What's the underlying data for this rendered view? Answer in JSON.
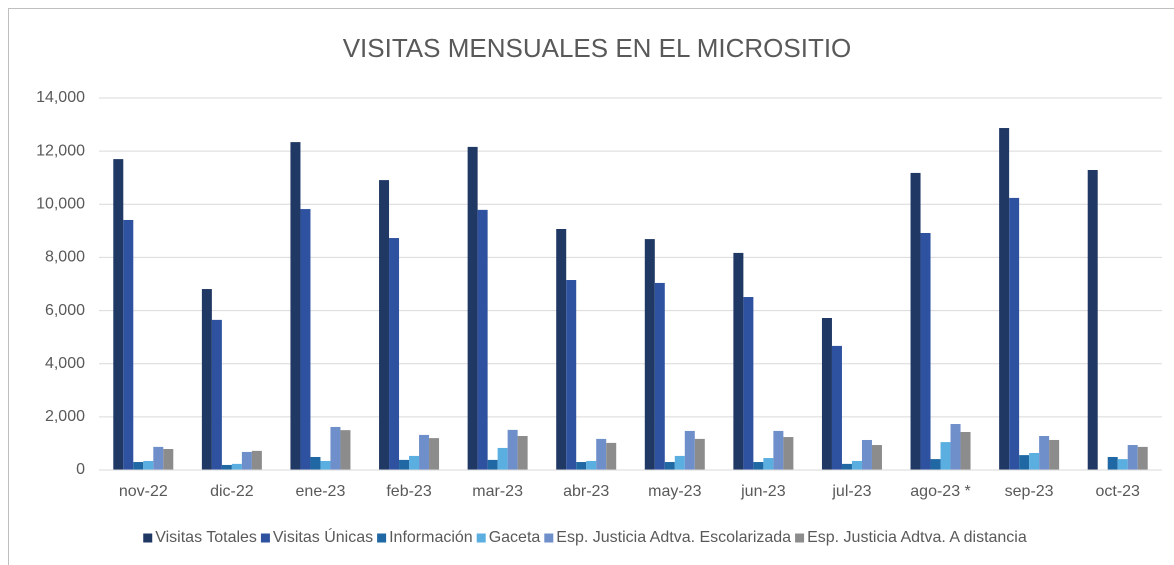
{
  "chart_data": {
    "type": "bar",
    "title": "VISITAS MENSUALES EN EL MICROSITIO",
    "categories": [
      "nov-22",
      "dic-22",
      "ene-23",
      "feb-23",
      "mar-23",
      "abr-23",
      "may-23",
      "jun-23",
      "jul-23",
      "ago-23 *",
      "sep-23",
      "oct-23"
    ],
    "series": [
      {
        "name": "Visitas Totales",
        "color": "#203864",
        "values": [
          11700,
          6810,
          12340,
          10910,
          12160,
          9070,
          8690,
          8170,
          5720,
          11180,
          12870,
          11290
        ]
      },
      {
        "name": "Visitas Únicas",
        "color": "#2f52a0",
        "values": [
          9410,
          5650,
          9820,
          8730,
          9790,
          7150,
          7040,
          6510,
          4670,
          8920,
          10240,
          null
        ]
      },
      {
        "name": "Información",
        "color": "#1f68a3",
        "values": [
          300,
          190,
          490,
          380,
          380,
          300,
          300,
          300,
          230,
          410,
          560,
          490
        ]
      },
      {
        "name": "Gaceta",
        "color": "#5aaee0",
        "values": [
          340,
          230,
          340,
          530,
          830,
          340,
          530,
          450,
          340,
          1050,
          640,
          410
        ]
      },
      {
        "name": "Esp. Justicia Adtva. Escolarizada",
        "color": "#6f8fca",
        "values": [
          870,
          680,
          1620,
          1320,
          1510,
          1170,
          1470,
          1470,
          1130,
          1730,
          1280,
          940
        ]
      },
      {
        "name": "Esp. Justicia Adtva. A distancia",
        "color": "#8c8c8c",
        "values": [
          790,
          720,
          1500,
          1200,
          1280,
          1020,
          1170,
          1240,
          940,
          1430,
          1130,
          870
        ]
      }
    ],
    "ylim": [
      0,
      14000
    ],
    "yticks": [
      0,
      {
        "value": 2000,
        "label": "2,000"
      },
      {
        "value": 4000,
        "label": "4,000"
      },
      {
        "value": 6000,
        "label": "6,000"
      },
      {
        "value": 8000,
        "label": "8,000"
      },
      {
        "value": 10000,
        "label": "10,000"
      },
      {
        "value": 12000,
        "label": "12,000"
      },
      {
        "value": 14000,
        "label": "14,000"
      }
    ],
    "grid": true,
    "legend": "bottom"
  }
}
